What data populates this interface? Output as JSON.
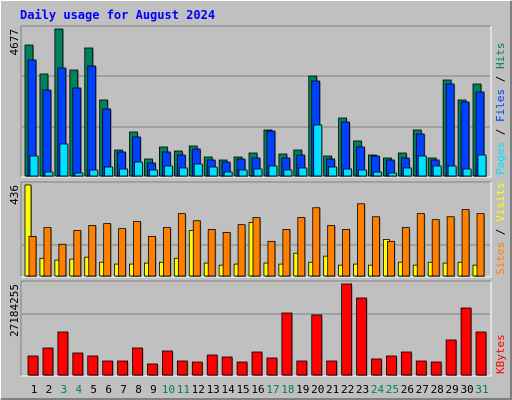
{
  "chart_data": [
    {
      "type": "bar",
      "title": "Daily usage for August 2024",
      "ylim": [
        0,
        4677
      ],
      "yticks": [
        4677
      ],
      "legend_separator": "/",
      "series": [
        {
          "name": "Hits",
          "color": "#00805c",
          "values": [
            4168,
            3245,
            4677,
            3373,
            4073,
            2418,
            827,
            1400,
            541,
            923,
            795,
            955,
            605,
            509,
            605,
            732,
            1464,
            700,
            827,
            3182,
            636,
            1845,
            1114,
            668,
            573,
            732,
            1464,
            573,
            3054,
            2418,
            2927
          ]
        },
        {
          "name": "Files",
          "color": "#0040ff",
          "values": [
            3691,
            2736,
            3436,
            2800,
            3500,
            2132,
            764,
            1241,
            414,
            764,
            668,
            859,
            509,
            445,
            541,
            573,
            1432,
            573,
            668,
            3023,
            541,
            1718,
            923,
            636,
            509,
            573,
            1336,
            509,
            2927,
            2354,
            2673
          ]
        },
        {
          "name": "Pages",
          "color": "#00e0ff",
          "values": [
            636,
            127,
            1018,
            95,
            191,
            286,
            223,
            445,
            191,
            318,
            255,
            382,
            286,
            127,
            191,
            223,
            318,
            191,
            255,
            1623,
            286,
            223,
            191,
            127,
            95,
            255,
            636,
            318,
            318,
            223,
            668
          ]
        }
      ]
    },
    {
      "type": "bar",
      "ylim": [
        0,
        436
      ],
      "yticks": [
        436
      ],
      "legend_separator": "/",
      "series": [
        {
          "name": "Visits",
          "color": "#ffff00",
          "values": [
            436,
            85,
            76,
            81,
            90,
            66,
            57,
            57,
            62,
            66,
            85,
            218,
            62,
            52,
            57,
            256,
            62,
            57,
            109,
            66,
            95,
            52,
            57,
            52,
            175,
            66,
            52,
            66,
            62,
            66,
            52
          ]
        },
        {
          "name": "Sites",
          "color": "#ff8000",
          "values": [
            190,
            232,
            152,
            218,
            242,
            251,
            227,
            261,
            190,
            232,
            299,
            265,
            223,
            209,
            246,
            280,
            166,
            223,
            280,
            327,
            242,
            223,
            346,
            284,
            166,
            232,
            299,
            270,
            284,
            318,
            299
          ]
        }
      ]
    },
    {
      "type": "bar",
      "ylim": [
        0,
        27184255
      ],
      "yticks": [
        27184255
      ],
      "categories": [
        "1",
        "2",
        "3",
        "4",
        "5",
        "6",
        "7",
        "8",
        "9",
        "10",
        "11",
        "12",
        "13",
        "14",
        "15",
        "16",
        "17",
        "18",
        "19",
        "20",
        "21",
        "22",
        "23",
        "24",
        "25",
        "26",
        "27",
        "28",
        "29",
        "30",
        "31"
      ],
      "category_colors": [
        "#000000",
        "#000000",
        "#00805c",
        "#00805c",
        "#000000",
        "#000000",
        "#000000",
        "#000000",
        "#000000",
        "#00805c",
        "#00805c",
        "#000000",
        "#000000",
        "#000000",
        "#000000",
        "#000000",
        "#00805c",
        "#00805c",
        "#000000",
        "#000000",
        "#000000",
        "#000000",
        "#000000",
        "#00805c",
        "#00805c",
        "#000000",
        "#000000",
        "#000000",
        "#000000",
        "#000000",
        "#00805c"
      ],
      "series": [
        {
          "name": "KBytes",
          "color": "#ff0000",
          "values": [
            5680000,
            8070000,
            12850000,
            6570000,
            5680000,
            4180000,
            4180000,
            8070000,
            3290000,
            7170000,
            4180000,
            3880000,
            5970000,
            5380000,
            3880000,
            6870000,
            5080000,
            18520000,
            4180000,
            17920000,
            4180000,
            27184255,
            23000000,
            4780000,
            5680000,
            6870000,
            4180000,
            3880000,
            10460000,
            20010000,
            12850000
          ]
        }
      ]
    }
  ]
}
